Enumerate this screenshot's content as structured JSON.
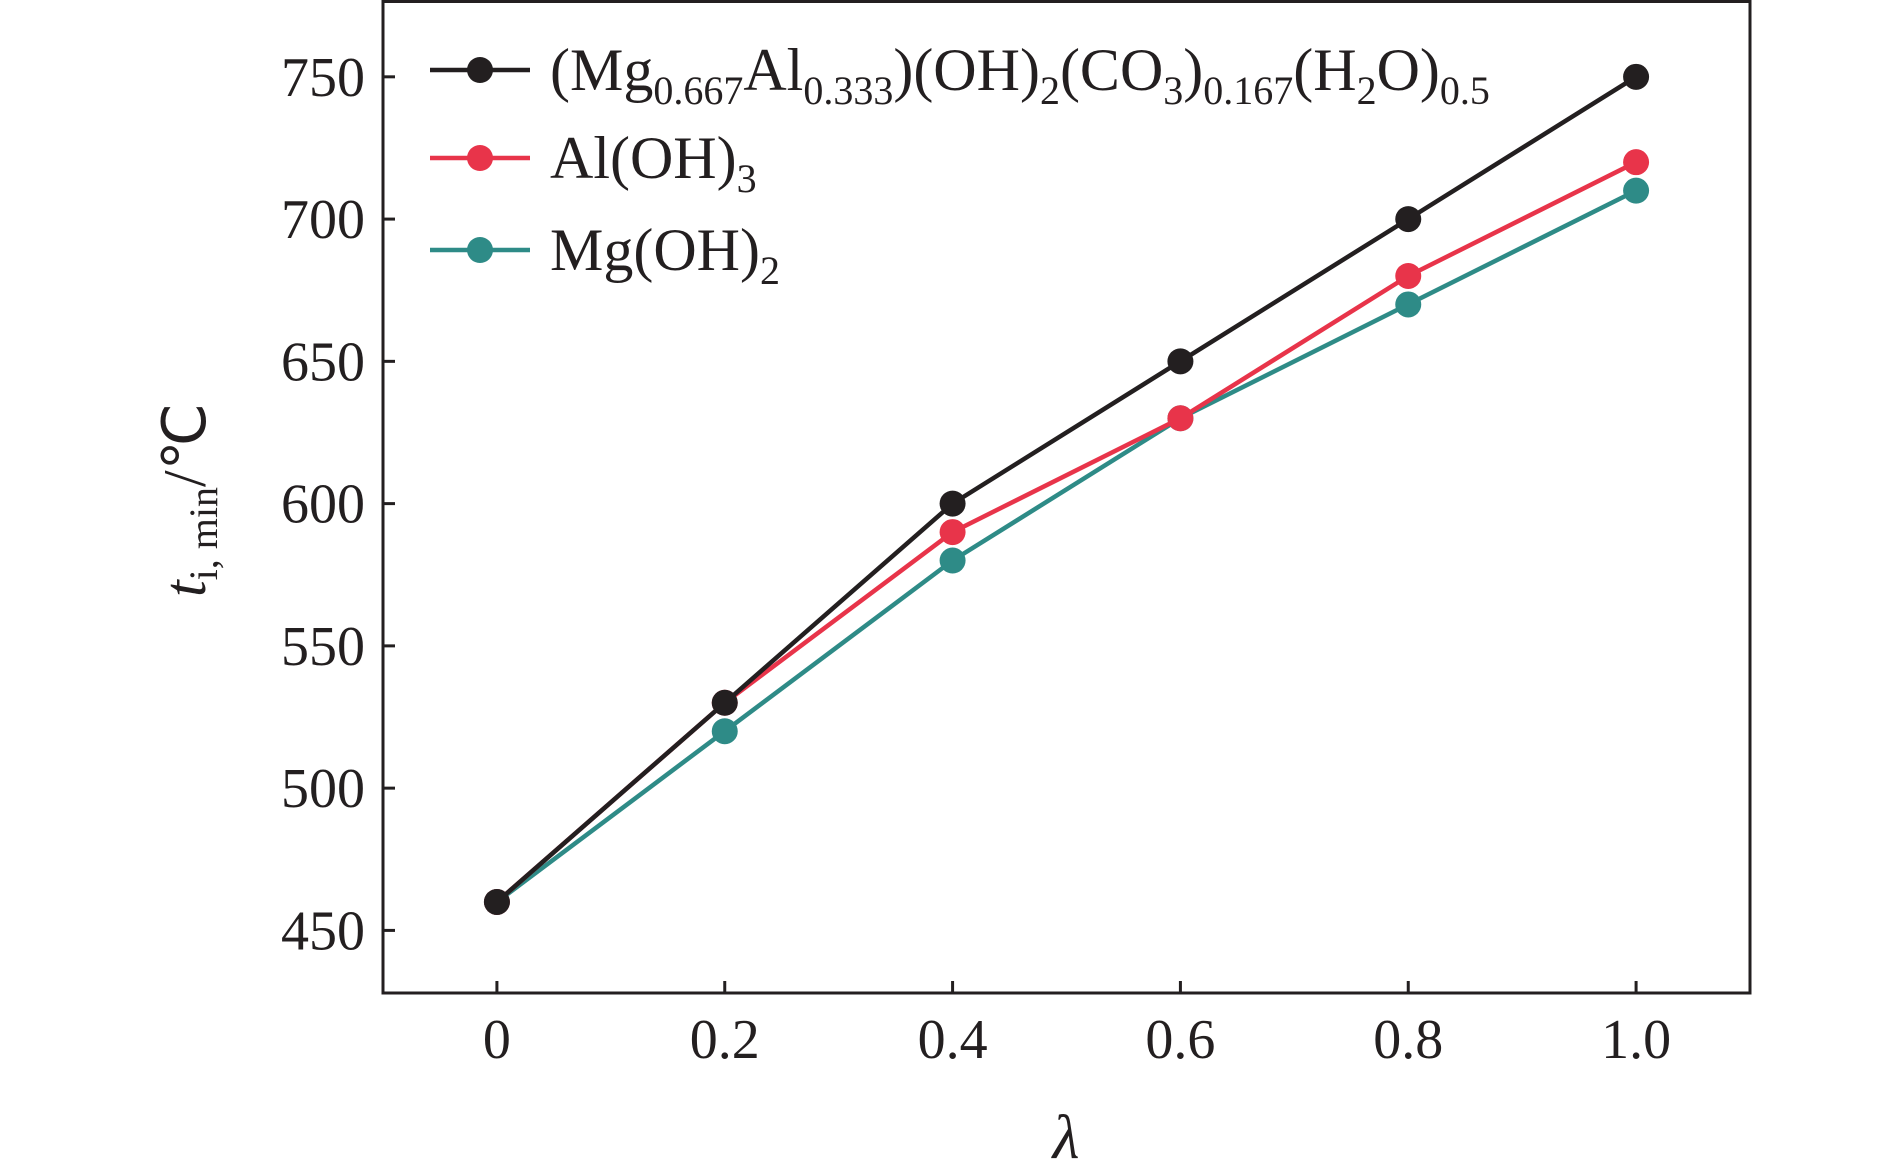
{
  "chart_data": {
    "type": "line",
    "x": [
      0,
      0.2,
      0.4,
      0.6,
      0.8,
      1.0
    ],
    "x_tick_labels": [
      "0",
      "0.2",
      "0.4",
      "0.6",
      "0.8",
      "1.0"
    ],
    "y_ticks": [
      450,
      500,
      550,
      600,
      650,
      700,
      750
    ],
    "y_tick_labels": [
      "450",
      "500",
      "550",
      "600",
      "650",
      "700",
      "750"
    ],
    "xlim": [
      -0.1,
      1.1
    ],
    "ylim": [
      428,
      777
    ],
    "xlabel": "λ",
    "ylabel": {
      "main": "t",
      "subscript": "i, min",
      "unit": "/℃"
    },
    "grid": false,
    "legend_position": "top-left",
    "series": [
      {
        "name": "(Mg0.667Al0.333)(OH)2(CO3)0.167(H2O)0.5",
        "legend_parts": [
          {
            "t": "(Mg",
            "sub": false
          },
          {
            "t": "0.667",
            "sub": true
          },
          {
            "t": "Al",
            "sub": false
          },
          {
            "t": "0.333",
            "sub": true
          },
          {
            "t": ")(OH)",
            "sub": false
          },
          {
            "t": "2",
            "sub": true
          },
          {
            "t": "(CO",
            "sub": false
          },
          {
            "t": "3",
            "sub": true
          },
          {
            "t": ")",
            "sub": false
          },
          {
            "t": "0.167",
            "sub": true
          },
          {
            "t": "(H",
            "sub": false
          },
          {
            "t": "2",
            "sub": true
          },
          {
            "t": "O)",
            "sub": false
          },
          {
            "t": "0.5",
            "sub": true
          }
        ],
        "color": "#231f20",
        "values": [
          460,
          530,
          600,
          650,
          700,
          750
        ]
      },
      {
        "name": "Al(OH)3",
        "legend_parts": [
          {
            "t": "Al(OH)",
            "sub": false
          },
          {
            "t": "3",
            "sub": true
          }
        ],
        "color": "#e8344a",
        "values": [
          460,
          530,
          590,
          630,
          680,
          720
        ]
      },
      {
        "name": "Mg(OH)2",
        "legend_parts": [
          {
            "t": "Mg(OH)",
            "sub": false
          },
          {
            "t": "2",
            "sub": true
          }
        ],
        "color": "#2e8b87",
        "values": [
          460,
          520,
          580,
          630,
          670,
          710
        ]
      }
    ]
  }
}
